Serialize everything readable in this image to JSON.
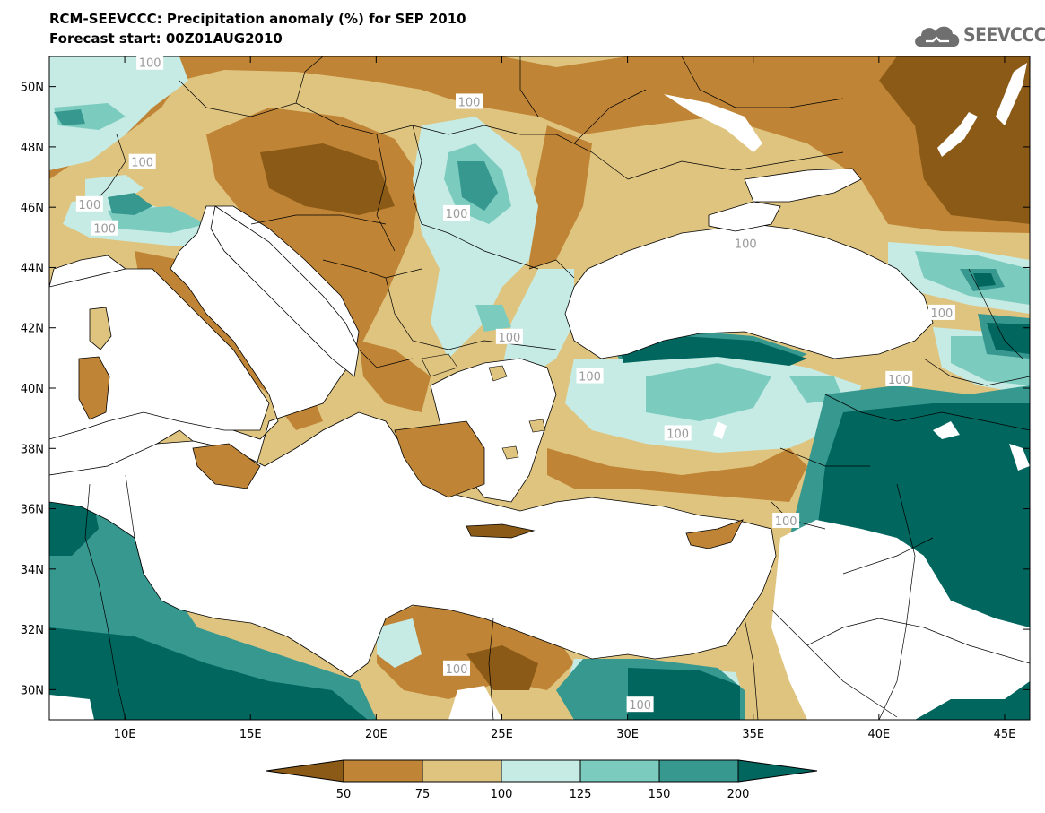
{
  "title": "RCM-SEEVCCC: Precipitation anomaly (%) for SEP 2010",
  "subtitle": "Forecast start: 00Z01AUG2010",
  "logo": {
    "text": "SEEVCCC",
    "icon": "cloud-icon"
  },
  "map": {
    "lon_range": [
      7,
      46
    ],
    "lat_range": [
      29,
      51
    ],
    "lon_ticks": [
      "10E",
      "15E",
      "20E",
      "25E",
      "30E",
      "35E",
      "40E",
      "45E"
    ],
    "lat_ticks": [
      "50N",
      "48N",
      "46N",
      "44N",
      "42N",
      "40N",
      "38N",
      "36N",
      "34N",
      "32N",
      "30N"
    ],
    "contour_labels": [
      {
        "text": "100",
        "lon": 11.0,
        "lat": 50.8
      },
      {
        "text": "100",
        "lon": 23.7,
        "lat": 49.5
      },
      {
        "text": "100",
        "lon": 10.7,
        "lat": 47.5
      },
      {
        "text": "100",
        "lon": 8.6,
        "lat": 46.1
      },
      {
        "text": "100",
        "lon": 9.2,
        "lat": 45.3
      },
      {
        "text": "100",
        "lon": 23.2,
        "lat": 45.8
      },
      {
        "text": "100",
        "lon": 34.7,
        "lat": 44.8
      },
      {
        "text": "100",
        "lon": 25.3,
        "lat": 41.7
      },
      {
        "text": "100",
        "lon": 28.5,
        "lat": 40.4
      },
      {
        "text": "100",
        "lon": 32.0,
        "lat": 38.5
      },
      {
        "text": "100",
        "lon": 42.5,
        "lat": 42.5
      },
      {
        "text": "100",
        "lon": 40.8,
        "lat": 40.3
      },
      {
        "text": "100",
        "lon": 36.3,
        "lat": 35.6
      },
      {
        "text": "100",
        "lon": 23.2,
        "lat": 30.7
      },
      {
        "text": "100",
        "lon": 30.5,
        "lat": 29.5
      }
    ]
  },
  "colorbar": {
    "labels": [
      "50",
      "75",
      "100",
      "125",
      "150",
      "200"
    ],
    "colors": [
      "#8b5a16",
      "#bf8436",
      "#dfc47f",
      "#c6ebe5",
      "#7ccbbf",
      "#379890",
      "#00665e"
    ]
  }
}
